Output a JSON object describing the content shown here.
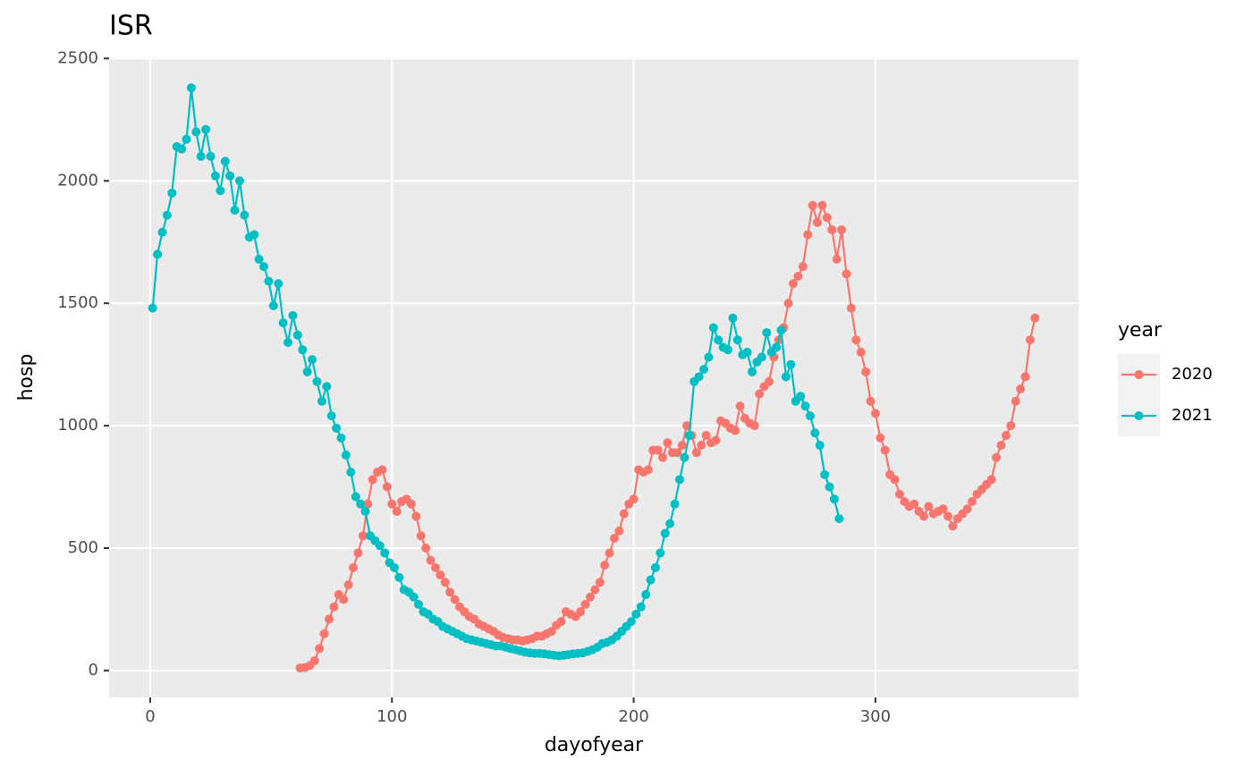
{
  "chart_data": {
    "type": "line",
    "title": "ISR",
    "x_label": "dayofyear",
    "y_label": "hosp",
    "legend_title": "year",
    "legend_position": "right",
    "grid": true,
    "xlim": [
      -17,
      384
    ],
    "ylim": [
      -110,
      2505
    ],
    "xticks": [
      0,
      100,
      200,
      300
    ],
    "yticks": [
      0,
      500,
      1000,
      1500,
      2000,
      2500
    ],
    "series": [
      {
        "name": "2020",
        "color": "#F8766D",
        "x": [
          62,
          64,
          66,
          68,
          70,
          72,
          74,
          76,
          78,
          80,
          82,
          84,
          86,
          88,
          90,
          92,
          94,
          96,
          98,
          100,
          102,
          104,
          106,
          108,
          110,
          112,
          114,
          116,
          118,
          120,
          122,
          124,
          126,
          128,
          130,
          132,
          134,
          136,
          138,
          140,
          142,
          144,
          146,
          148,
          150,
          152,
          154,
          156,
          158,
          160,
          162,
          164,
          166,
          168,
          170,
          172,
          174,
          176,
          178,
          180,
          182,
          184,
          186,
          188,
          190,
          192,
          194,
          196,
          198,
          200,
          202,
          204,
          206,
          208,
          210,
          212,
          214,
          216,
          218,
          220,
          222,
          224,
          226,
          228,
          230,
          232,
          234,
          236,
          238,
          240,
          242,
          244,
          246,
          248,
          250,
          252,
          254,
          256,
          258,
          260,
          262,
          264,
          266,
          268,
          270,
          272,
          274,
          276,
          278,
          280,
          282,
          284,
          286,
          288,
          290,
          292,
          294,
          296,
          298,
          300,
          302,
          304,
          306,
          308,
          310,
          312,
          314,
          316,
          318,
          320,
          322,
          324,
          326,
          328,
          330,
          332,
          334,
          336,
          338,
          340,
          342,
          344,
          346,
          348,
          350,
          352,
          354,
          356,
          358,
          360,
          362,
          364,
          366
        ],
        "values": [
          10,
          12,
          20,
          40,
          90,
          150,
          210,
          260,
          310,
          290,
          350,
          420,
          480,
          550,
          680,
          780,
          810,
          820,
          750,
          680,
          650,
          690,
          700,
          680,
          630,
          550,
          500,
          450,
          420,
          390,
          360,
          320,
          290,
          260,
          240,
          220,
          210,
          190,
          180,
          170,
          160,
          145,
          135,
          130,
          125,
          125,
          120,
          125,
          130,
          140,
          140,
          150,
          160,
          185,
          200,
          240,
          230,
          220,
          240,
          270,
          300,
          330,
          360,
          430,
          480,
          540,
          570,
          640,
          680,
          700,
          820,
          810,
          820,
          900,
          900,
          870,
          930,
          890,
          890,
          920,
          1000,
          960,
          890,
          920,
          960,
          930,
          940,
          1020,
          1010,
          990,
          980,
          1080,
          1030,
          1010,
          1000,
          1130,
          1160,
          1180,
          1280,
          1350,
          1400,
          1500,
          1580,
          1610,
          1650,
          1780,
          1900,
          1830,
          1900,
          1850,
          1800,
          1680,
          1800,
          1620,
          1480,
          1350,
          1300,
          1220,
          1100,
          1050,
          950,
          900,
          800,
          780,
          720,
          690,
          670,
          680,
          650,
          630,
          670,
          640,
          650,
          660,
          630,
          590,
          620,
          640,
          660,
          690,
          720,
          740,
          760,
          780,
          870,
          920,
          960,
          1000,
          1100,
          1150,
          1200,
          1350,
          1440
        ]
      },
      {
        "name": "2021",
        "color": "#00BFC4",
        "x": [
          1,
          3,
          5,
          7,
          9,
          11,
          13,
          15,
          17,
          19,
          21,
          23,
          25,
          27,
          29,
          31,
          33,
          35,
          37,
          39,
          41,
          43,
          45,
          47,
          49,
          51,
          53,
          55,
          57,
          59,
          61,
          63,
          65,
          67,
          69,
          71,
          73,
          75,
          77,
          79,
          81,
          83,
          85,
          87,
          89,
          91,
          93,
          95,
          97,
          99,
          101,
          103,
          105,
          107,
          109,
          111,
          113,
          115,
          117,
          119,
          121,
          123,
          125,
          127,
          129,
          131,
          133,
          135,
          137,
          139,
          141,
          143,
          145,
          147,
          149,
          151,
          153,
          155,
          157,
          159,
          161,
          163,
          165,
          167,
          169,
          171,
          173,
          175,
          177,
          179,
          181,
          183,
          185,
          187,
          189,
          191,
          193,
          195,
          197,
          199,
          201,
          203,
          205,
          207,
          209,
          211,
          213,
          215,
          217,
          219,
          221,
          223,
          225,
          227,
          229,
          231,
          233,
          235,
          237,
          239,
          241,
          243,
          245,
          247,
          249,
          251,
          253,
          255,
          257,
          259,
          261,
          263,
          265,
          267,
          269,
          271,
          273,
          275,
          277,
          279,
          281,
          283,
          285
        ],
        "values": [
          1480,
          1700,
          1790,
          1860,
          1950,
          2140,
          2130,
          2170,
          2380,
          2200,
          2100,
          2210,
          2100,
          2020,
          1960,
          2080,
          2020,
          1880,
          2000,
          1860,
          1770,
          1780,
          1680,
          1650,
          1590,
          1490,
          1580,
          1420,
          1340,
          1450,
          1370,
          1310,
          1220,
          1270,
          1180,
          1100,
          1160,
          1040,
          990,
          950,
          880,
          810,
          710,
          680,
          650,
          550,
          530,
          510,
          480,
          440,
          420,
          380,
          330,
          320,
          300,
          270,
          240,
          230,
          210,
          200,
          180,
          170,
          160,
          150,
          140,
          130,
          125,
          120,
          115,
          110,
          105,
          100,
          100,
          95,
          90,
          85,
          80,
          75,
          72,
          70,
          70,
          68,
          65,
          62,
          60,
          62,
          65,
          68,
          70,
          72,
          78,
          85,
          95,
          110,
          115,
          125,
          140,
          160,
          180,
          200,
          230,
          260,
          310,
          370,
          420,
          480,
          560,
          600,
          680,
          780,
          870,
          960,
          1180,
          1200,
          1230,
          1280,
          1400,
          1350,
          1320,
          1310,
          1440,
          1350,
          1290,
          1300,
          1220,
          1260,
          1280,
          1380,
          1300,
          1320,
          1390,
          1200,
          1250,
          1100,
          1120,
          1080,
          1040,
          970,
          920,
          800,
          750,
          700,
          620
        ]
      }
    ]
  }
}
